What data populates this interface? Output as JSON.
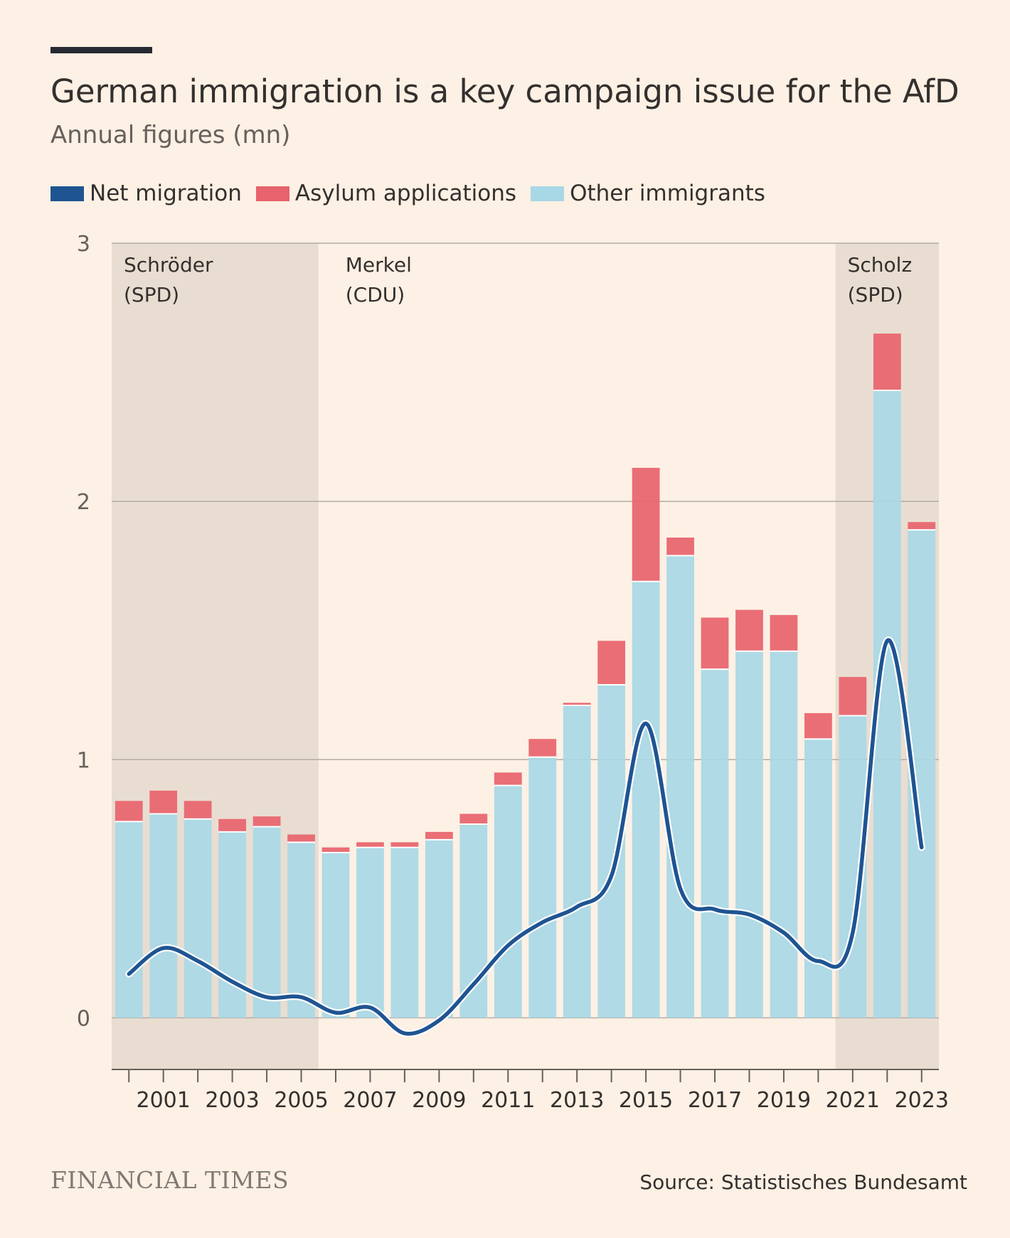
{
  "header": {
    "title": "German immigration is a key campaign issue for the AfD",
    "subtitle": "Annual figures (mn)"
  },
  "legend": [
    {
      "label": "Net migration",
      "color": "#1f5492"
    },
    {
      "label": "Asylum applications",
      "color": "#e8636d"
    },
    {
      "label": "Other immigrants",
      "color": "#a8d8e6"
    }
  ],
  "footer": {
    "brand": "FINANCIAL TIMES",
    "source": "Source: Statistisches Bundesamt"
  },
  "chart_data": {
    "type": "bar",
    "title": "German immigration is a key campaign issue for the AfD",
    "subtitle": "Annual figures (mn)",
    "ylim": [
      -0.2,
      3
    ],
    "yticks": [
      0,
      1,
      2,
      3
    ],
    "grid": true,
    "stacked": true,
    "years": [
      2000,
      2001,
      2002,
      2003,
      2004,
      2005,
      2006,
      2007,
      2008,
      2009,
      2010,
      2011,
      2012,
      2013,
      2014,
      2015,
      2016,
      2017,
      2018,
      2019,
      2020,
      2021,
      2022,
      2023
    ],
    "xtick_labels": [
      "2001",
      "2003",
      "2005",
      "2007",
      "2009",
      "2011",
      "2013",
      "2015",
      "2017",
      "2019",
      "2021",
      "2023"
    ],
    "series": [
      {
        "name": "Other immigrants",
        "color": "#a8d8e6",
        "values": [
          0.76,
          0.79,
          0.77,
          0.72,
          0.74,
          0.68,
          0.64,
          0.66,
          0.66,
          0.69,
          0.75,
          0.9,
          1.01,
          1.21,
          1.29,
          1.69,
          1.79,
          1.35,
          1.42,
          1.42,
          1.08,
          1.17,
          2.43,
          1.89
        ]
      },
      {
        "name": "Asylum applications",
        "color": "#e8636d",
        "values": [
          0.08,
          0.09,
          0.07,
          0.05,
          0.04,
          0.03,
          0.02,
          0.02,
          0.02,
          0.03,
          0.04,
          0.05,
          0.07,
          0.01,
          0.17,
          0.44,
          0.07,
          0.2,
          0.16,
          0.14,
          0.1,
          0.15,
          0.22,
          0.03
        ]
      },
      {
        "name": "Net migration",
        "color": "#1f5492",
        "type": "line",
        "values": [
          0.17,
          0.27,
          0.22,
          0.14,
          0.08,
          0.08,
          0.02,
          0.04,
          -0.06,
          -0.01,
          0.13,
          0.28,
          0.37,
          0.43,
          0.55,
          1.14,
          0.5,
          0.42,
          0.4,
          0.33,
          0.22,
          0.33,
          1.46,
          0.66
        ]
      }
    ],
    "periods": [
      {
        "label_line1": "Schröder",
        "label_line2": "(SPD)",
        "start_year": 2000,
        "end_year": 2005,
        "shaded": true
      },
      {
        "label_line1": "Merkel",
        "label_line2": "(CDU)",
        "start_year": 2006,
        "end_year": 2020,
        "shaded": false
      },
      {
        "label_line1": "Scholz",
        "label_line2": "(SPD)",
        "start_year": 2021,
        "end_year": 2023,
        "shaded": true
      }
    ],
    "colors": {
      "shade": "#e9ddd1",
      "grid": "#b4ada6",
      "axis": "#66605c",
      "line_outline": "#ffffff"
    }
  }
}
